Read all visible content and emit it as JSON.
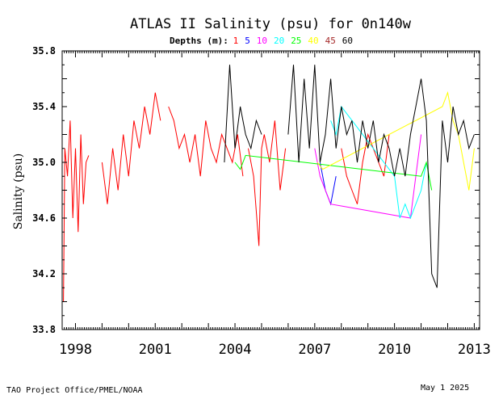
{
  "chart_data": {
    "type": "line",
    "title": "ATLAS II Salinity (psu) for 0n140w",
    "ylabel": "Salinity (psu)",
    "xlabel": "",
    "xlim": [
      1997.5,
      2013.2
    ],
    "ylim": [
      33.8,
      35.8
    ],
    "yticks": [
      33.8,
      34.2,
      34.6,
      35.0,
      35.4,
      35.8
    ],
    "ytick_labels": [
      "33.8",
      "34.2",
      "34.6",
      "35.0",
      "35.4",
      "35.8"
    ],
    "xticks": [
      1998,
      2001,
      2004,
      2007,
      2010,
      2013
    ],
    "xtick_labels": [
      "1998",
      "2001",
      "2004",
      "2007",
      "2010",
      "2013"
    ],
    "legend_label": "Depths (m):",
    "legend_placement": "top-center",
    "series": [
      {
        "name": "1",
        "color": "#ff0000",
        "segments": [
          {
            "x": [
              1997.55,
              1997.6,
              1997.7,
              1997.8,
              1997.9,
              1998.0,
              1998.1,
              1998.2,
              1998.3,
              1998.4,
              1998.5
            ],
            "y": [
              34.0,
              35.1,
              34.9,
              35.3,
              34.6,
              35.1,
              34.5,
              35.2,
              34.7,
              35.0,
              35.05
            ]
          },
          {
            "x": [
              1999.0,
              1999.2,
              1999.4,
              1999.6,
              1999.8,
              2000.0,
              2000.2,
              2000.4,
              2000.6,
              2000.8,
              2001.0,
              2001.2
            ],
            "y": [
              35.0,
              34.7,
              35.1,
              34.8,
              35.2,
              34.9,
              35.3,
              35.1,
              35.4,
              35.2,
              35.5,
              35.3
            ]
          },
          {
            "x": [
              2001.5,
              2001.7,
              2001.9,
              2002.1,
              2002.3,
              2002.5,
              2002.7,
              2002.9,
              2003.1,
              2003.3,
              2003.5,
              2003.7,
              2003.9,
              2004.1,
              2004.3
            ],
            "y": [
              35.4,
              35.3,
              35.1,
              35.2,
              35.0,
              35.2,
              34.9,
              35.3,
              35.1,
              35.0,
              35.2,
              35.1,
              35.0,
              35.2,
              34.9
            ]
          },
          {
            "x": [
              2004.5,
              2004.7,
              2004.9,
              2005.0,
              2005.1,
              2005.3,
              2005.5,
              2005.7,
              2005.9
            ],
            "y": [
              35.1,
              34.9,
              34.4,
              35.1,
              35.2,
              35.0,
              35.3,
              34.8,
              35.1
            ]
          },
          {
            "x": [
              2008.0,
              2008.2,
              2008.4,
              2008.6,
              2008.8,
              2009.0,
              2009.2,
              2009.4,
              2009.6,
              2009.8
            ],
            "y": [
              35.1,
              34.9,
              34.8,
              34.7,
              35.0,
              35.2,
              35.1,
              35.0,
              34.9,
              35.2
            ]
          }
        ]
      },
      {
        "name": "5",
        "color": "#0000ff",
        "segments": [
          {
            "x": [
              2007.2,
              2007.4,
              2007.6,
              2007.8
            ],
            "y": [
              35.0,
              34.8,
              34.7,
              34.9
            ]
          }
        ]
      },
      {
        "name": "10",
        "color": "#ff00ff",
        "segments": [
          {
            "x": [
              2007.0,
              2007.2,
              2007.4,
              2007.6,
              2010.6,
              2010.8,
              2011.0
            ],
            "y": [
              35.1,
              34.9,
              34.8,
              34.7,
              34.6,
              34.9,
              35.2
            ]
          }
        ]
      },
      {
        "name": "20",
        "color": "#00ffff",
        "segments": [
          {
            "x": [
              2007.6,
              2007.8,
              2008.0,
              2010.0,
              2010.2,
              2010.4,
              2010.6,
              2011.0,
              2011.2
            ],
            "y": [
              35.3,
              35.2,
              35.4,
              34.9,
              34.6,
              34.7,
              34.6,
              34.8,
              35.0
            ]
          }
        ]
      },
      {
        "name": "25",
        "color": "#00ff00",
        "segments": [
          {
            "x": [
              2004.0,
              2004.2,
              2004.4,
              2011.0,
              2011.2,
              2011.4
            ],
            "y": [
              35.0,
              34.95,
              35.05,
              34.9,
              35.0,
              34.8
            ]
          }
        ]
      },
      {
        "name": "40",
        "color": "#ffff00",
        "segments": [
          {
            "x": [
              2007.1,
              2007.3,
              2011.8,
              2012.0,
              2012.2,
              2012.4,
              2012.6,
              2012.8,
              2013.0
            ],
            "y": [
              35.0,
              34.95,
              35.4,
              35.5,
              35.3,
              35.2,
              35.0,
              34.8,
              35.1
            ]
          }
        ]
      },
      {
        "name": "45",
        "color": "#a52a2a",
        "segments": []
      },
      {
        "name": "60",
        "color": "#000000",
        "segments": [
          {
            "x": [
              2003.6,
              2003.8,
              2004.0,
              2004.2,
              2004.4,
              2004.6,
              2004.8,
              2005.0
            ],
            "y": [
              35.0,
              35.7,
              35.1,
              35.4,
              35.2,
              35.1,
              35.3,
              35.2
            ]
          },
          {
            "x": [
              2006.0,
              2006.2,
              2006.4,
              2006.6,
              2006.8,
              2007.0,
              2007.2,
              2007.4,
              2007.6,
              2007.8,
              2008.0,
              2008.2,
              2008.4,
              2008.6,
              2008.8,
              2009.0,
              2009.2,
              2009.4,
              2009.6,
              2009.8,
              2010.0,
              2010.2,
              2010.4,
              2010.6,
              2010.8,
              2011.0,
              2011.2,
              2011.4,
              2011.6,
              2011.8,
              2012.0,
              2012.2,
              2012.4,
              2012.6,
              2012.8,
              2013.0
            ],
            "y": [
              35.2,
              35.7,
              35.0,
              35.6,
              35.1,
              35.7,
              35.0,
              35.2,
              35.6,
              35.1,
              35.4,
              35.2,
              35.3,
              35.0,
              35.3,
              35.1,
              35.3,
              35.0,
              35.2,
              35.1,
              34.9,
              35.1,
              34.9,
              35.2,
              35.4,
              35.6,
              35.3,
              34.2,
              34.1,
              35.3,
              35.0,
              35.4,
              35.2,
              35.3,
              35.1,
              35.2
            ]
          }
        ]
      }
    ]
  },
  "footer": {
    "left": "TAO Project Office/PMEL/NOAA",
    "right": "May  1 2025"
  }
}
